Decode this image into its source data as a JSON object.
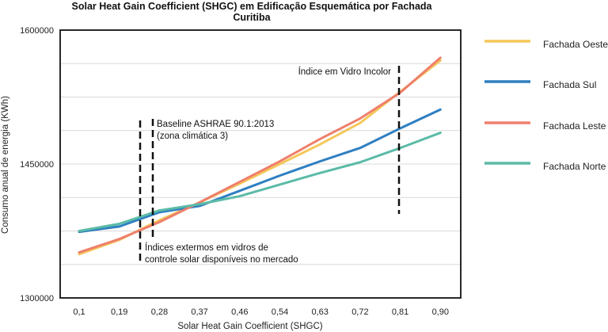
{
  "chart_data": {
    "type": "line",
    "title_lines": [
      "Solar Heat Gain Coefficient (SHGC) em Edificação Esquemática por Fachada",
      "Curitiba"
    ],
    "xlabel": "Solar Heat Gain Coefficient (SHGC)",
    "ylabel": "Consumo anual de energia (KWh)",
    "categories": [
      "0,1",
      "0,19",
      "0,28",
      "0,37",
      "0,46",
      "0,54",
      "0,63",
      "0,72",
      "0,81",
      "0,90"
    ],
    "y_ticks": [
      "1300000",
      "1450000",
      "1600000"
    ],
    "ylim": [
      1300000,
      1600000
    ],
    "grid": true,
    "legend_position": "right",
    "series": [
      {
        "name": "Fachada Oeste",
        "color": "#F5C75A",
        "values": [
          1349000,
          1365000,
          1387000,
          1407000,
          1428000,
          1450000,
          1472000,
          1496000,
          1531000,
          1566000
        ]
      },
      {
        "name": "Fachada Sul",
        "color": "#2F7FC1",
        "values": [
          1374000,
          1380000,
          1396000,
          1403000,
          1420000,
          1437000,
          1453000,
          1468000,
          1490000,
          1511000
        ]
      },
      {
        "name": "Fachada Leste",
        "color": "#EE7F6B",
        "values": [
          1351000,
          1366000,
          1385000,
          1407000,
          1430000,
          1453000,
          1478000,
          1501000,
          1530000,
          1569000
        ]
      },
      {
        "name": "Fachada Norte",
        "color": "#5BBBA7",
        "values": [
          1375000,
          1383000,
          1398000,
          1405000,
          1414000,
          1427000,
          1440000,
          1452000,
          1468000,
          1485000
        ]
      }
    ],
    "annotations": [
      {
        "label": "Baseline ASHRAE 90.1:2013 (zona climática 3)",
        "lines": [
          "Baseline ASHRAE 90.1:2013",
          "(zona climática 3)"
        ],
        "x": 0.24
      },
      {
        "label": "Índices extermos em vidros de controle solar disponíveis no mercado",
        "lines": [
          "Índices extermos em vidros de",
          "controle solar disponíveis no mercado"
        ],
        "x": 0.22
      },
      {
        "label": "Índice em Vidro Incolor",
        "lines": [
          "Índice em Vidro Incolor"
        ],
        "x": 0.8
      }
    ]
  }
}
